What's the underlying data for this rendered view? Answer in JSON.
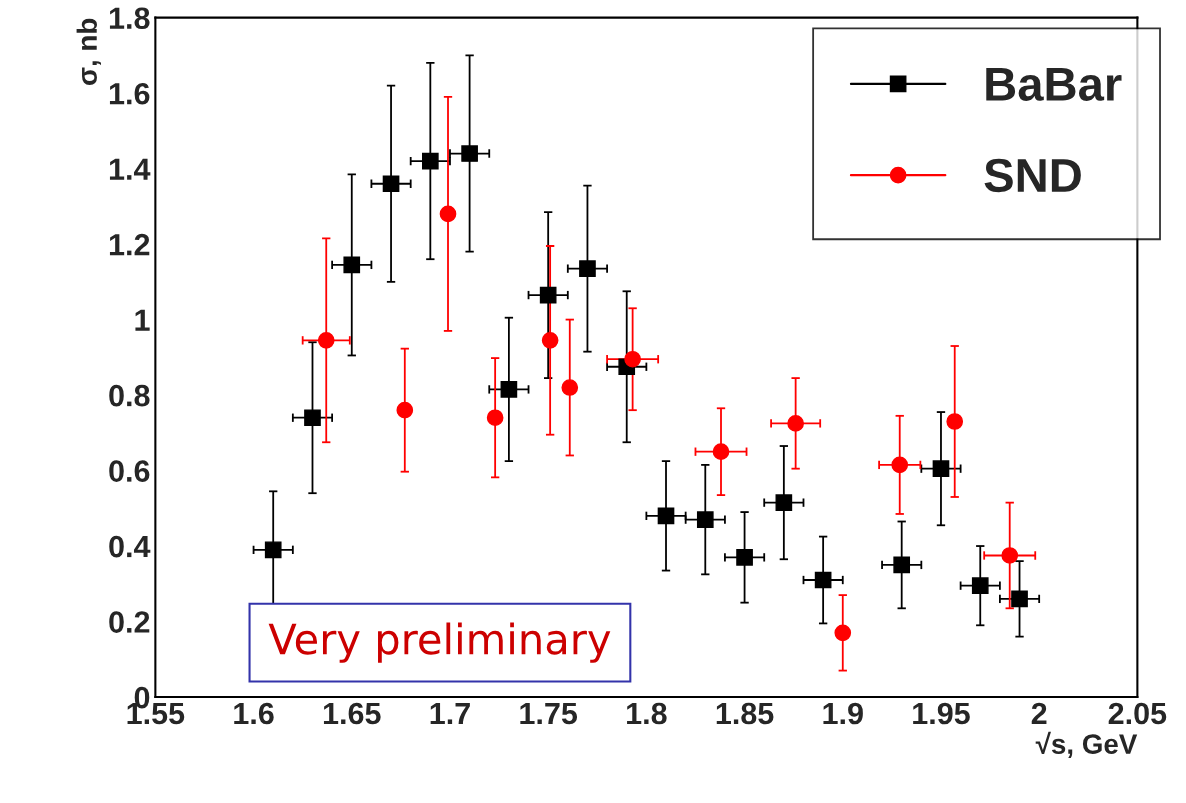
{
  "chart_data": {
    "type": "scatter",
    "xlabel": "√s, GeV",
    "ylabel": "σ, nb",
    "xlim": [
      1.55,
      2.05
    ],
    "xticks": [
      {
        "value": 1.55,
        "label": "1.55"
      },
      {
        "value": 1.6,
        "label": "1.6"
      },
      {
        "value": 1.65,
        "label": "1.65"
      },
      {
        "value": 1.7,
        "label": "1.7"
      },
      {
        "value": 1.75,
        "label": "1.75"
      },
      {
        "value": 1.8,
        "label": "1.8"
      },
      {
        "value": 1.85,
        "label": "1.85"
      },
      {
        "value": 1.9,
        "label": "1.9"
      },
      {
        "value": 1.95,
        "label": "1.95"
      },
      {
        "value": 2,
        "label": "2"
      },
      {
        "value": 2.05,
        "label": "2.05"
      }
    ],
    "ylim": [
      0,
      1.8
    ],
    "yticks": [
      0,
      0.2,
      0.4,
      0.6,
      0.8,
      1,
      1.2,
      1.4,
      1.6,
      1.8
    ],
    "grid": false,
    "legend": "top right",
    "annotations": [
      "Very preliminary"
    ],
    "series": [
      {
        "name": "BaBar",
        "color": "#000000",
        "marker": "square",
        "x": [
          1.61,
          1.63,
          1.65,
          1.67,
          1.69,
          1.71,
          1.73,
          1.75,
          1.77,
          1.79,
          1.81,
          1.83,
          1.85,
          1.87,
          1.89,
          1.93,
          1.95,
          1.97,
          1.99
        ],
        "values": [
          0.39,
          0.74,
          1.145,
          1.36,
          1.42,
          1.44,
          0.815,
          1.065,
          1.135,
          0.875,
          0.48,
          0.47,
          0.37,
          0.515,
          0.31,
          0.35,
          0.605,
          0.295,
          0.26
        ],
        "errors": [
          0.155,
          0.2,
          0.24,
          0.26,
          0.26,
          0.26,
          0.19,
          0.22,
          0.22,
          0.2,
          0.145,
          0.145,
          0.12,
          0.15,
          0.115,
          0.115,
          0.15,
          0.105,
          0.1
        ],
        "xerrors": [
          0.01,
          0.01,
          0.01,
          0.01,
          0.01,
          0.01,
          0.01,
          0.01,
          0.01,
          0.01,
          0.01,
          0.01,
          0.01,
          0.01,
          0.01,
          0.01,
          0.01,
          0.01,
          0.01
        ]
      },
      {
        "name": "SND",
        "color": "#ff0000",
        "marker": "circle",
        "x": [
          1.637,
          1.677,
          1.699,
          1.723,
          1.751,
          1.761,
          1.793,
          1.838,
          1.876,
          1.9,
          1.929,
          1.957,
          1.985
        ],
        "values": [
          0.945,
          0.76,
          1.28,
          0.74,
          0.945,
          0.82,
          0.895,
          0.65,
          0.725,
          0.17,
          0.615,
          0.73,
          0.375
        ],
        "errors": [
          0.27,
          0.163,
          0.31,
          0.158,
          0.25,
          0.18,
          0.135,
          0.115,
          0.12,
          0.1,
          0.13,
          0.2,
          0.14
        ],
        "xerrors": [
          0.012,
          null,
          null,
          null,
          null,
          null,
          0.013,
          0.013,
          0.0125,
          null,
          0.0105,
          null,
          0.013
        ]
      }
    ]
  }
}
